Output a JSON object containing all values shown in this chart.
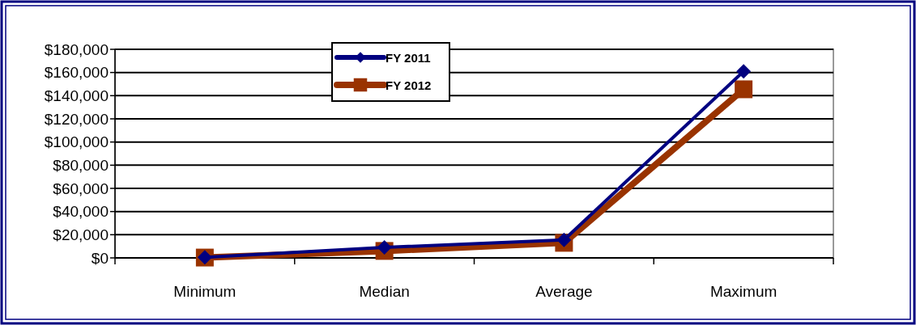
{
  "chart_data": {
    "type": "line",
    "categories": [
      "Minimum",
      "Median",
      "Average",
      "Maximum"
    ],
    "series": [
      {
        "name": "FY 2011",
        "color": "#000080",
        "marker": "diamond",
        "values": [
          500,
          9000,
          15500,
          161000
        ]
      },
      {
        "name": "FY 2012",
        "color": "#993300",
        "marker": "square",
        "values": [
          300,
          6000,
          13000,
          145500
        ]
      }
    ],
    "ylim": [
      0,
      180000
    ],
    "yticks": [
      {
        "value": 0,
        "label": "$0"
      },
      {
        "value": 20000,
        "label": "$20,000"
      },
      {
        "value": 40000,
        "label": "$40,000"
      },
      {
        "value": 60000,
        "label": "$60,000"
      },
      {
        "value": 80000,
        "label": "$80,000"
      },
      {
        "value": 100000,
        "label": "$100,000"
      },
      {
        "value": 120000,
        "label": "$120,000"
      },
      {
        "value": 140000,
        "label": "$140,000"
      },
      {
        "value": 160000,
        "label": "$160,000"
      },
      {
        "value": 180000,
        "label": "$180,000"
      }
    ],
    "grid": "y",
    "legend": "top left"
  }
}
